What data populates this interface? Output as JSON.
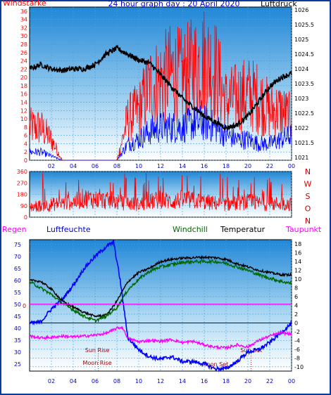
{
  "chart_data": [
    {
      "type": "line",
      "title": "24 hour graph day : 20 April 2020",
      "left_label": "Windstärke",
      "right_label": "Luftdruck",
      "left_ticks": [
        "0",
        "2",
        "4",
        "6",
        "8",
        "10",
        "12",
        "14",
        "16",
        "18",
        "20",
        "22",
        "24",
        "26",
        "28",
        "30",
        "32",
        "34",
        "36"
      ],
      "right_ticks": [
        "1026",
        "1025.5",
        "1025",
        "1024.5",
        "1024",
        "1023.5",
        "1023",
        "1022.5",
        "1022",
        "1021.5",
        "1021"
      ],
      "x_ticks": [
        "02",
        "04",
        "06",
        "08",
        "10",
        "12",
        "14",
        "16",
        "18",
        "20",
        "22",
        "00"
      ],
      "ylim_left": [
        0,
        37
      ],
      "ylim_right": [
        1020.9,
        1026.1
      ],
      "series": [
        {
          "name": "Windstärke",
          "color": "#ff0000",
          "hours": [
            0,
            1,
            2,
            3,
            4,
            5,
            6,
            7,
            8,
            9,
            10,
            11,
            12,
            13,
            14,
            15,
            16,
            17,
            18,
            19,
            20,
            21,
            22,
            23,
            24
          ],
          "values": [
            8,
            8,
            5,
            0,
            0,
            0,
            0,
            0,
            0,
            10,
            12,
            18,
            19,
            21,
            20,
            22,
            24,
            22,
            14,
            15,
            16,
            15,
            12,
            12,
            10
          ]
        },
        {
          "name": "Windstärke min",
          "color": "#0000ff",
          "hours": [
            0,
            1,
            2,
            3,
            4,
            5,
            6,
            7,
            8,
            9,
            10,
            11,
            12,
            13,
            14,
            15,
            16,
            17,
            18,
            19,
            20,
            21,
            22,
            23,
            24
          ],
          "values": [
            2,
            2,
            1,
            0,
            0,
            0,
            0,
            0,
            0,
            4,
            5,
            7,
            8,
            8,
            8,
            9,
            9,
            8,
            6,
            5,
            5,
            4,
            4,
            5,
            6
          ]
        },
        {
          "name": "Luftdruck",
          "color": "#000000",
          "hours": [
            0,
            1,
            2,
            3,
            4,
            5,
            6,
            7,
            8,
            9,
            10,
            11,
            12,
            13,
            14,
            15,
            16,
            17,
            18,
            19,
            20,
            21,
            22,
            23,
            24
          ],
          "values": [
            1024.0,
            1024.15,
            1024.0,
            1023.95,
            1024.0,
            1024.0,
            1024.15,
            1024.5,
            1024.7,
            1024.5,
            1024.3,
            1024.2,
            1023.8,
            1023.4,
            1023.0,
            1022.7,
            1022.4,
            1022.2,
            1022.0,
            1022.1,
            1022.4,
            1022.9,
            1023.4,
            1023.7,
            1023.85
          ]
        }
      ]
    },
    {
      "type": "line",
      "left_ticks": [
        "0",
        "90",
        "180",
        "270",
        "360"
      ],
      "right_labels": [
        "N",
        "W",
        "S",
        "O",
        "N"
      ],
      "ylim": [
        0,
        360
      ],
      "series": [
        {
          "name": "Windrichtung",
          "color": "#ff0000",
          "hours": [
            0,
            1,
            2,
            3,
            4,
            5,
            6,
            7,
            8,
            9,
            10,
            11,
            12,
            13,
            14,
            15,
            16,
            17,
            18,
            19,
            20,
            21,
            22,
            23,
            24
          ],
          "values": [
            80,
            90,
            100,
            110,
            120,
            150,
            140,
            130,
            120,
            110,
            100,
            120,
            140,
            120,
            140,
            130,
            120,
            110,
            100,
            110,
            120,
            110,
            100,
            110,
            100
          ]
        }
      ]
    },
    {
      "type": "line",
      "labels": {
        "regen": "Regen",
        "luftfeuchte": "Luftfeuchte",
        "windchill": "Windchill",
        "temperatur": "Temperatur",
        "taupunkt": "Taupunkt"
      },
      "left_ticks": [
        "25",
        "30",
        "35",
        "40",
        "45",
        "50",
        "55",
        "60",
        "65",
        "70",
        "75"
      ],
      "right_ticks": [
        "18",
        "16",
        "14",
        "12",
        "10",
        "8",
        "6",
        "4",
        "2",
        "0",
        "-2",
        "-4",
        "-6",
        "-8",
        "-10"
      ],
      "zero_label": "0",
      "x_ticks": [
        "02",
        "04",
        "06",
        "08",
        "10",
        "12",
        "14",
        "16",
        "18",
        "20",
        "22",
        "00"
      ],
      "ylim_left": [
        22,
        77
      ],
      "ylim_right": [
        -11,
        19
      ],
      "annotations": {
        "sun_rise": "Sun Rise",
        "moon_rise": "Moon Rise",
        "sun_set": "Sun Set",
        "moon_set": "Moon Set"
      },
      "series": [
        {
          "name": "Luftfeuchte",
          "axis": "left",
          "color": "#0000ff",
          "hours": [
            0,
            1,
            2,
            3,
            4,
            5,
            6,
            7,
            7.7,
            8.3,
            9,
            10,
            11,
            12,
            13,
            14,
            15,
            16,
            17,
            18,
            19,
            20,
            21,
            22,
            23,
            24
          ],
          "values": [
            42,
            42.5,
            48,
            52,
            58,
            65,
            70,
            74,
            76,
            60,
            36,
            31,
            28,
            27,
            28,
            26,
            26,
            25,
            23,
            23,
            26,
            30,
            31,
            34,
            38,
            42
          ]
        },
        {
          "name": "Temperatur",
          "axis": "right",
          "color": "#000000",
          "hours": [
            0,
            1,
            2,
            3,
            4,
            5,
            6,
            7,
            7.5,
            8,
            9,
            10,
            11,
            12,
            13,
            14,
            15,
            16,
            17,
            18,
            19,
            20,
            21,
            22,
            23,
            24
          ],
          "values": [
            9.7,
            9.5,
            7.7,
            5.0,
            3.6,
            2.4,
            1.5,
            1.8,
            3.2,
            5.0,
            9.4,
            11.5,
            12.5,
            14.0,
            14.5,
            14.8,
            14.9,
            15.0,
            14.9,
            14.5,
            13.5,
            12.8,
            12.0,
            11.5,
            11.0,
            11.0
          ]
        },
        {
          "name": "Windchill",
          "axis": "right",
          "color": "#006600",
          "hours": [
            0,
            1,
            2,
            3,
            4,
            5,
            6,
            7,
            8,
            9,
            10,
            11,
            12,
            13,
            14,
            15,
            16,
            17,
            18,
            19,
            20,
            21,
            22,
            23,
            24
          ],
          "values": [
            9.4,
            8.0,
            6.5,
            4.5,
            3.0,
            1.5,
            0.5,
            1.5,
            3.5,
            7.5,
            10.0,
            11.8,
            12.8,
            13.3,
            13.8,
            14.0,
            14.0,
            14.0,
            13.6,
            12.8,
            12.0,
            11.0,
            10.2,
            9.5,
            9.0
          ]
        },
        {
          "name": "Taupunkt",
          "axis": "right",
          "color": "#ff00ff",
          "hours": [
            0,
            1,
            2,
            3,
            4,
            5,
            6,
            7,
            8,
            8.5,
            9,
            10,
            11,
            12,
            13,
            14,
            15,
            16,
            17,
            18,
            19,
            20,
            21,
            22,
            23,
            24
          ],
          "values": [
            -3.0,
            -3.4,
            -3.3,
            -3.0,
            -3.2,
            -3.0,
            -2.8,
            -2.4,
            -1.2,
            -1.0,
            -3.5,
            -4.3,
            -4.0,
            -4.2,
            -3.8,
            -4.5,
            -4.2,
            -5.0,
            -5.5,
            -5.7,
            -5.0,
            -5.5,
            -4.0,
            -3.0,
            -2.2,
            -2.6
          ]
        },
        {
          "name": "Regen",
          "axis": "left",
          "color": "#ff00ff",
          "hours": [
            0,
            24
          ],
          "values": [
            50,
            50
          ]
        }
      ]
    }
  ],
  "colors": {
    "red": "#ff0000",
    "blue": "#0000ff",
    "black": "#000000",
    "green": "#006600",
    "magenta": "#ff00ff",
    "frame": "#0a3a9a",
    "tick_text": "#0000cc"
  }
}
